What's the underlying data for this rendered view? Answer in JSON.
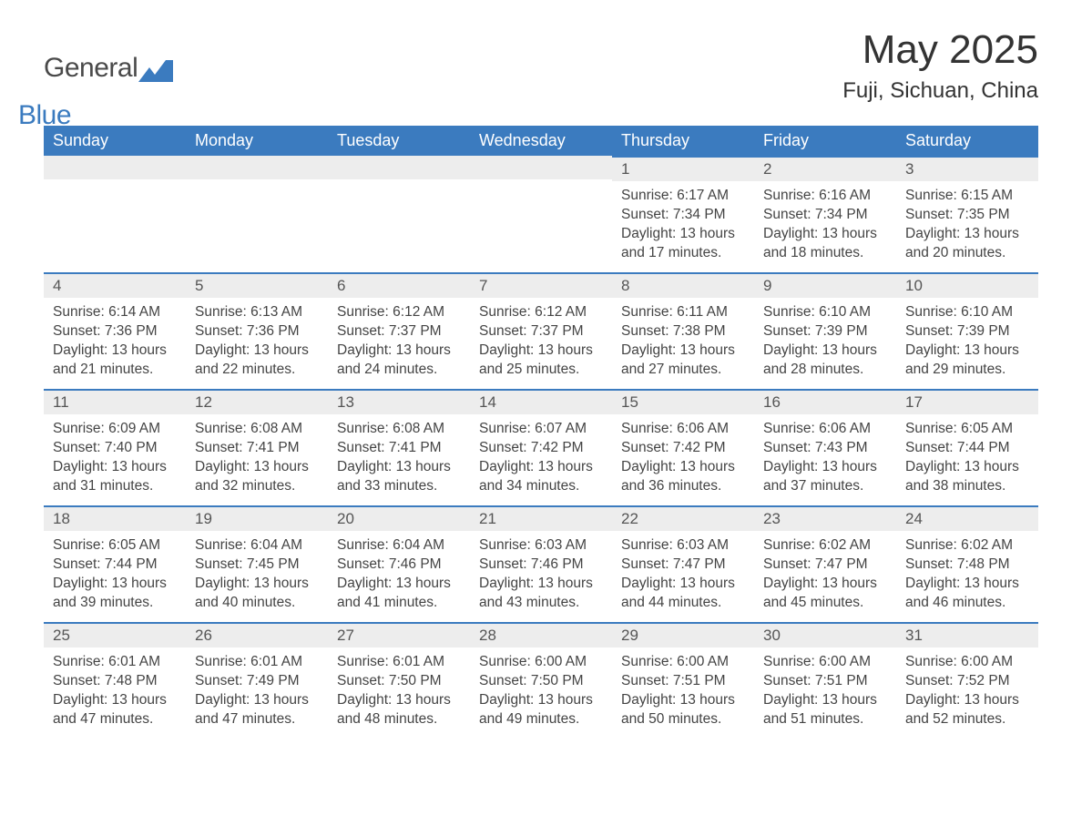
{
  "logo": {
    "general": "General",
    "blue": "Blue"
  },
  "title": "May 2025",
  "location": "Fuji, Sichuan, China",
  "colors": {
    "header_bg": "#3b7bbf",
    "header_text": "#ffffff",
    "daynum_bg": "#ededed",
    "border_top": "#3b7bbf",
    "body_text": "#444444",
    "page_bg": "#ffffff"
  },
  "day_names": [
    "Sunday",
    "Monday",
    "Tuesday",
    "Wednesday",
    "Thursday",
    "Friday",
    "Saturday"
  ],
  "weeks": [
    [
      null,
      null,
      null,
      null,
      {
        "n": "1",
        "sr": "Sunrise: 6:17 AM",
        "ss": "Sunset: 7:34 PM",
        "dl": "Daylight: 13 hours and 17 minutes."
      },
      {
        "n": "2",
        "sr": "Sunrise: 6:16 AM",
        "ss": "Sunset: 7:34 PM",
        "dl": "Daylight: 13 hours and 18 minutes."
      },
      {
        "n": "3",
        "sr": "Sunrise: 6:15 AM",
        "ss": "Sunset: 7:35 PM",
        "dl": "Daylight: 13 hours and 20 minutes."
      }
    ],
    [
      {
        "n": "4",
        "sr": "Sunrise: 6:14 AM",
        "ss": "Sunset: 7:36 PM",
        "dl": "Daylight: 13 hours and 21 minutes."
      },
      {
        "n": "5",
        "sr": "Sunrise: 6:13 AM",
        "ss": "Sunset: 7:36 PM",
        "dl": "Daylight: 13 hours and 22 minutes."
      },
      {
        "n": "6",
        "sr": "Sunrise: 6:12 AM",
        "ss": "Sunset: 7:37 PM",
        "dl": "Daylight: 13 hours and 24 minutes."
      },
      {
        "n": "7",
        "sr": "Sunrise: 6:12 AM",
        "ss": "Sunset: 7:37 PM",
        "dl": "Daylight: 13 hours and 25 minutes."
      },
      {
        "n": "8",
        "sr": "Sunrise: 6:11 AM",
        "ss": "Sunset: 7:38 PM",
        "dl": "Daylight: 13 hours and 27 minutes."
      },
      {
        "n": "9",
        "sr": "Sunrise: 6:10 AM",
        "ss": "Sunset: 7:39 PM",
        "dl": "Daylight: 13 hours and 28 minutes."
      },
      {
        "n": "10",
        "sr": "Sunrise: 6:10 AM",
        "ss": "Sunset: 7:39 PM",
        "dl": "Daylight: 13 hours and 29 minutes."
      }
    ],
    [
      {
        "n": "11",
        "sr": "Sunrise: 6:09 AM",
        "ss": "Sunset: 7:40 PM",
        "dl": "Daylight: 13 hours and 31 minutes."
      },
      {
        "n": "12",
        "sr": "Sunrise: 6:08 AM",
        "ss": "Sunset: 7:41 PM",
        "dl": "Daylight: 13 hours and 32 minutes."
      },
      {
        "n": "13",
        "sr": "Sunrise: 6:08 AM",
        "ss": "Sunset: 7:41 PM",
        "dl": "Daylight: 13 hours and 33 minutes."
      },
      {
        "n": "14",
        "sr": "Sunrise: 6:07 AM",
        "ss": "Sunset: 7:42 PM",
        "dl": "Daylight: 13 hours and 34 minutes."
      },
      {
        "n": "15",
        "sr": "Sunrise: 6:06 AM",
        "ss": "Sunset: 7:42 PM",
        "dl": "Daylight: 13 hours and 36 minutes."
      },
      {
        "n": "16",
        "sr": "Sunrise: 6:06 AM",
        "ss": "Sunset: 7:43 PM",
        "dl": "Daylight: 13 hours and 37 minutes."
      },
      {
        "n": "17",
        "sr": "Sunrise: 6:05 AM",
        "ss": "Sunset: 7:44 PM",
        "dl": "Daylight: 13 hours and 38 minutes."
      }
    ],
    [
      {
        "n": "18",
        "sr": "Sunrise: 6:05 AM",
        "ss": "Sunset: 7:44 PM",
        "dl": "Daylight: 13 hours and 39 minutes."
      },
      {
        "n": "19",
        "sr": "Sunrise: 6:04 AM",
        "ss": "Sunset: 7:45 PM",
        "dl": "Daylight: 13 hours and 40 minutes."
      },
      {
        "n": "20",
        "sr": "Sunrise: 6:04 AM",
        "ss": "Sunset: 7:46 PM",
        "dl": "Daylight: 13 hours and 41 minutes."
      },
      {
        "n": "21",
        "sr": "Sunrise: 6:03 AM",
        "ss": "Sunset: 7:46 PM",
        "dl": "Daylight: 13 hours and 43 minutes."
      },
      {
        "n": "22",
        "sr": "Sunrise: 6:03 AM",
        "ss": "Sunset: 7:47 PM",
        "dl": "Daylight: 13 hours and 44 minutes."
      },
      {
        "n": "23",
        "sr": "Sunrise: 6:02 AM",
        "ss": "Sunset: 7:47 PM",
        "dl": "Daylight: 13 hours and 45 minutes."
      },
      {
        "n": "24",
        "sr": "Sunrise: 6:02 AM",
        "ss": "Sunset: 7:48 PM",
        "dl": "Daylight: 13 hours and 46 minutes."
      }
    ],
    [
      {
        "n": "25",
        "sr": "Sunrise: 6:01 AM",
        "ss": "Sunset: 7:48 PM",
        "dl": "Daylight: 13 hours and 47 minutes."
      },
      {
        "n": "26",
        "sr": "Sunrise: 6:01 AM",
        "ss": "Sunset: 7:49 PM",
        "dl": "Daylight: 13 hours and 47 minutes."
      },
      {
        "n": "27",
        "sr": "Sunrise: 6:01 AM",
        "ss": "Sunset: 7:50 PM",
        "dl": "Daylight: 13 hours and 48 minutes."
      },
      {
        "n": "28",
        "sr": "Sunrise: 6:00 AM",
        "ss": "Sunset: 7:50 PM",
        "dl": "Daylight: 13 hours and 49 minutes."
      },
      {
        "n": "29",
        "sr": "Sunrise: 6:00 AM",
        "ss": "Sunset: 7:51 PM",
        "dl": "Daylight: 13 hours and 50 minutes."
      },
      {
        "n": "30",
        "sr": "Sunrise: 6:00 AM",
        "ss": "Sunset: 7:51 PM",
        "dl": "Daylight: 13 hours and 51 minutes."
      },
      {
        "n": "31",
        "sr": "Sunrise: 6:00 AM",
        "ss": "Sunset: 7:52 PM",
        "dl": "Daylight: 13 hours and 52 minutes."
      }
    ]
  ]
}
